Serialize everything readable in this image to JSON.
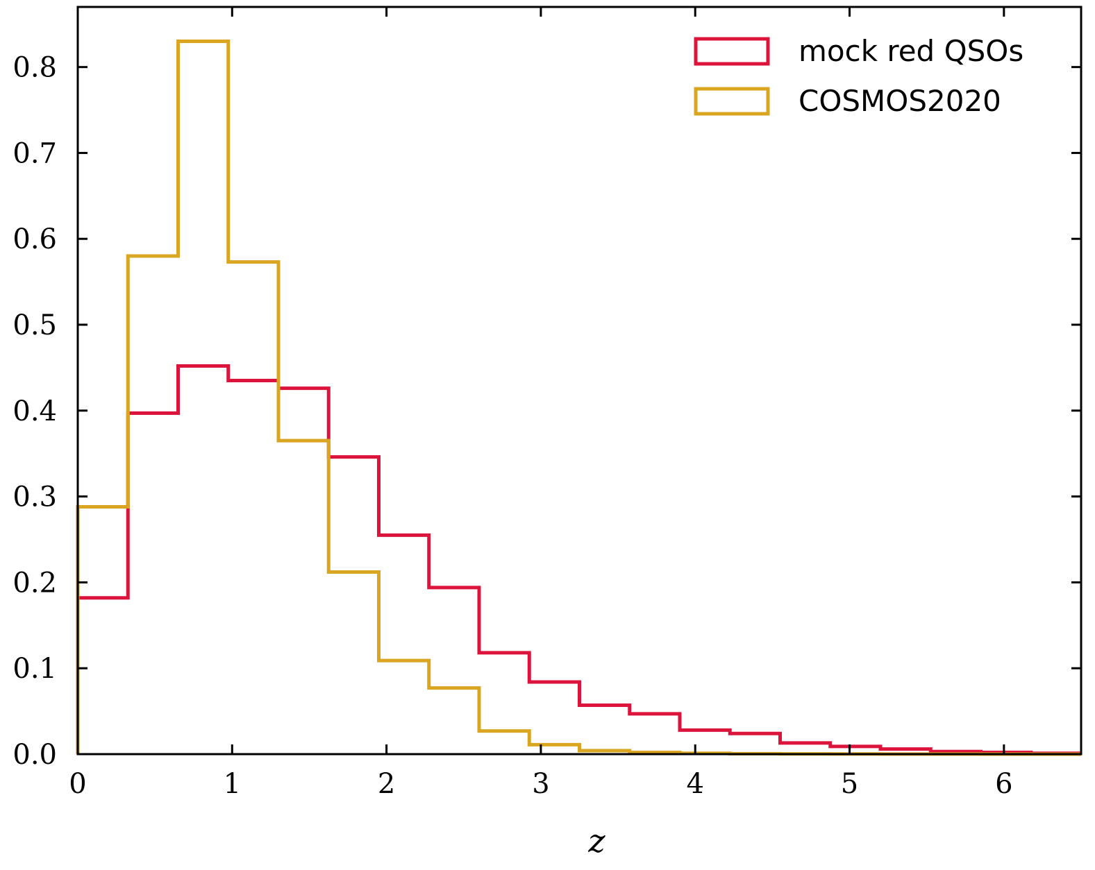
{
  "chart_data": {
    "type": "histogram",
    "xlabel": "z",
    "ylabel": "",
    "xlim": [
      0,
      6.5
    ],
    "ylim": [
      0,
      0.87
    ],
    "xticks": [
      0,
      1,
      2,
      3,
      4,
      5,
      6
    ],
    "xtick_labels": [
      "0",
      "1",
      "2",
      "3",
      "4",
      "5",
      "6"
    ],
    "yticks": [
      0.0,
      0.1,
      0.2,
      0.3,
      0.4,
      0.5,
      0.6,
      0.7,
      0.8
    ],
    "ytick_labels": [
      "0.0",
      "0.1",
      "0.2",
      "0.3",
      "0.4",
      "0.5",
      "0.6",
      "0.7",
      "0.8"
    ],
    "grid": false,
    "legend_position": "top-right",
    "bin_edges": [
      0,
      0.325,
      0.65,
      0.975,
      1.3,
      1.625,
      1.95,
      2.275,
      2.6,
      2.925,
      3.25,
      3.575,
      3.9,
      4.225,
      4.55,
      4.875,
      5.2,
      5.525,
      5.85,
      6.175,
      6.5
    ],
    "series": [
      {
        "name": "mock red QSOs",
        "color": "#dc143c",
        "values": [
          0.182,
          0.397,
          0.452,
          0.435,
          0.426,
          0.346,
          0.255,
          0.194,
          0.118,
          0.084,
          0.057,
          0.047,
          0.028,
          0.024,
          0.013,
          0.009,
          0.006,
          0.003,
          0.002,
          0.001
        ]
      },
      {
        "name": "COSMOS2020",
        "color": "#daa520",
        "values": [
          0.288,
          0.58,
          0.83,
          0.573,
          0.365,
          0.212,
          0.109,
          0.077,
          0.027,
          0.011,
          0.004,
          0.002,
          0.001,
          0.0005,
          0.0003,
          0.0002,
          0.0001,
          0.0001,
          0.0,
          0.0
        ]
      }
    ]
  }
}
